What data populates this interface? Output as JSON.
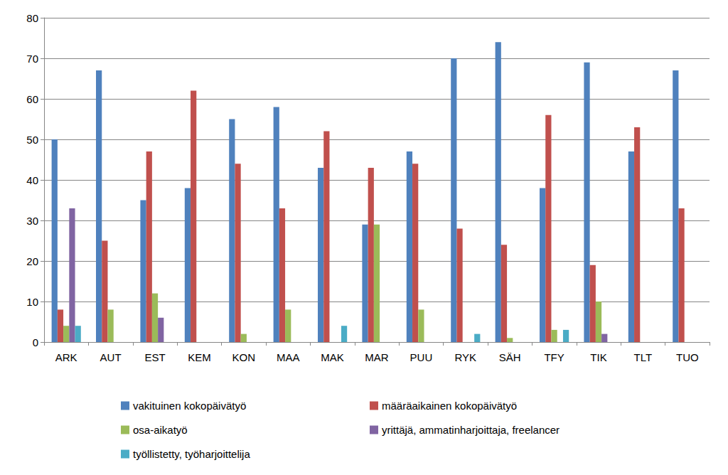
{
  "chart_data": {
    "type": "bar",
    "categories": [
      "ARK",
      "AUT",
      "EST",
      "KEM",
      "KON",
      "MAA",
      "MAK",
      "MAR",
      "PUU",
      "RYK",
      "SÄH",
      "TFY",
      "TIK",
      "TLT",
      "TUO"
    ],
    "series": [
      {
        "name": "vakituinen kokopäivätyö",
        "color": "#4f81bd",
        "values": [
          50,
          67,
          35,
          38,
          55,
          58,
          43,
          29,
          47,
          70,
          74,
          38,
          69,
          47,
          67
        ]
      },
      {
        "name": "määräaikainen kokopäivätyö",
        "color": "#c0504d",
        "values": [
          8,
          25,
          47,
          62,
          44,
          33,
          52,
          43,
          44,
          28,
          24,
          56,
          19,
          53,
          33
        ]
      },
      {
        "name": "osa-aikatyö",
        "color": "#9bbb59",
        "values": [
          4,
          8,
          12,
          0,
          2,
          8,
          0,
          29,
          8,
          0,
          1,
          3,
          10,
          0,
          0
        ]
      },
      {
        "name": "yrittäjä, ammatinharjoittaja, freelancer",
        "color": "#8064a2",
        "values": [
          33,
          0,
          6,
          0,
          0,
          0,
          0,
          0,
          0,
          0,
          0,
          0,
          2,
          0,
          0
        ]
      },
      {
        "name": "työllistetty, työharjoittelija",
        "color": "#4bacc6",
        "values": [
          4,
          0,
          0,
          0,
          0,
          0,
          4,
          0,
          0,
          2,
          0,
          3,
          0,
          0,
          0
        ]
      }
    ],
    "ylim": [
      0,
      80
    ],
    "yticks": [
      0,
      10,
      20,
      30,
      40,
      50,
      60,
      70,
      80
    ],
    "grid": true,
    "legend": "bottom"
  }
}
